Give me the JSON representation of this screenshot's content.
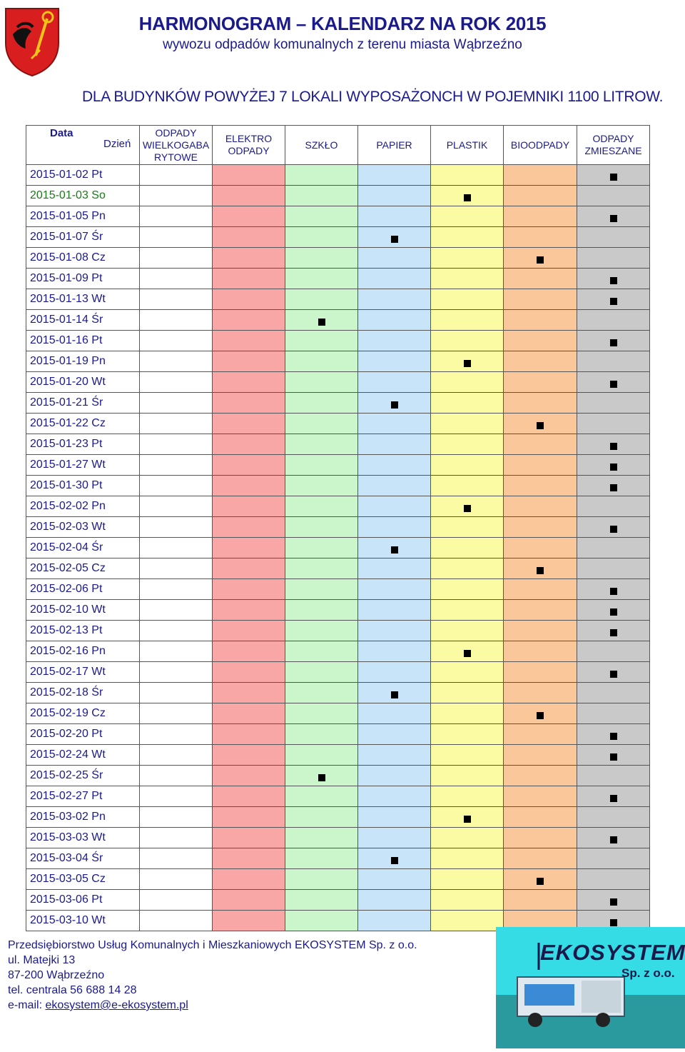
{
  "header": {
    "title": "HARMONOGRAM – KALENDARZ NA ROK 2015",
    "subtitle": "wywozu odpadów komunalnych z terenu miasta Wąbrzeźno",
    "heading": "DLA BUDYNKÓW POWYŻEJ 7 LOKALI WYPOSAŻONCH W POJEMNIKI 1100 LITROW."
  },
  "table": {
    "date_header": "Data",
    "day_header": "Dzień",
    "waste_columns": [
      {
        "label": "ODPADY WIELKOGABA RYTOWE",
        "color": "#ffffff"
      },
      {
        "label": "ELEKTRO ODPADY",
        "color": "#f9a6a6"
      },
      {
        "label": "SZKŁO",
        "color": "#cbf5cb"
      },
      {
        "label": "PAPIER",
        "color": "#c7e4f9"
      },
      {
        "label": "PLASTIK",
        "color": "#fbfba4"
      },
      {
        "label": "BIOODPADY",
        "color": "#fac79a"
      },
      {
        "label": "ODPADY ZMIESZANE",
        "color": "#c9c9c9"
      }
    ],
    "rows": [
      {
        "date": "2015-01-02",
        "day": "Pt",
        "col": 6
      },
      {
        "date": "2015-01-03",
        "day": "So",
        "col": 4
      },
      {
        "date": "2015-01-05",
        "day": "Pn",
        "col": 6
      },
      {
        "date": "2015-01-07",
        "day": "Śr",
        "col": 3
      },
      {
        "date": "2015-01-08",
        "day": "Cz",
        "col": 5
      },
      {
        "date": "2015-01-09",
        "day": "Pt",
        "col": 6
      },
      {
        "date": "2015-01-13",
        "day": "Wt",
        "col": 6
      },
      {
        "date": "2015-01-14",
        "day": "Śr",
        "col": 2
      },
      {
        "date": "2015-01-16",
        "day": "Pt",
        "col": 6
      },
      {
        "date": "2015-01-19",
        "day": "Pn",
        "col": 4
      },
      {
        "date": "2015-01-20",
        "day": "Wt",
        "col": 6
      },
      {
        "date": "2015-01-21",
        "day": "Śr",
        "col": 3
      },
      {
        "date": "2015-01-22",
        "day": "Cz",
        "col": 5
      },
      {
        "date": "2015-01-23",
        "day": "Pt",
        "col": 6
      },
      {
        "date": "2015-01-27",
        "day": "Wt",
        "col": 6
      },
      {
        "date": "2015-01-30",
        "day": "Pt",
        "col": 6
      },
      {
        "date": "2015-02-02",
        "day": "Pn",
        "col": 4
      },
      {
        "date": "2015-02-03",
        "day": "Wt",
        "col": 6
      },
      {
        "date": "2015-02-04",
        "day": "Śr",
        "col": 3
      },
      {
        "date": "2015-02-05",
        "day": "Cz",
        "col": 5
      },
      {
        "date": "2015-02-06",
        "day": "Pt",
        "col": 6
      },
      {
        "date": "2015-02-10",
        "day": "Wt",
        "col": 6
      },
      {
        "date": "2015-02-13",
        "day": "Pt",
        "col": 6
      },
      {
        "date": "2015-02-16",
        "day": "Pn",
        "col": 4
      },
      {
        "date": "2015-02-17",
        "day": "Wt",
        "col": 6
      },
      {
        "date": "2015-02-18",
        "day": "Śr",
        "col": 3
      },
      {
        "date": "2015-02-19",
        "day": "Cz",
        "col": 5
      },
      {
        "date": "2015-02-20",
        "day": "Pt",
        "col": 6
      },
      {
        "date": "2015-02-24",
        "day": "Wt",
        "col": 6
      },
      {
        "date": "2015-02-25",
        "day": "Śr",
        "col": 2
      },
      {
        "date": "2015-02-27",
        "day": "Pt",
        "col": 6
      },
      {
        "date": "2015-03-02",
        "day": "Pn",
        "col": 4
      },
      {
        "date": "2015-03-03",
        "day": "Wt",
        "col": 6
      },
      {
        "date": "2015-03-04",
        "day": "Śr",
        "col": 3
      },
      {
        "date": "2015-03-05",
        "day": "Cz",
        "col": 5
      },
      {
        "date": "2015-03-06",
        "day": "Pt",
        "col": 6
      },
      {
        "date": "2015-03-10",
        "day": "Wt",
        "col": 6
      }
    ]
  },
  "footer": {
    "company": "Przedsiębiorstwo Usług Komunalnych i Mieszkaniowych EKOSYSTEM Sp. z o.o.",
    "street": "ul. Matejki 13",
    "city": "87-200 Wąbrzeźno",
    "phone": "tel. centrala 56 688 14 28",
    "email_label": "e-mail: ",
    "email": "ekosystem@e-ekosystem.pl"
  },
  "logo": {
    "brand": "EKOSYSTEM",
    "suffix": "Sp. z o.o."
  },
  "crest": {
    "colors": {
      "shield": "#d81e1e",
      "emblem": "#f2c318"
    }
  }
}
